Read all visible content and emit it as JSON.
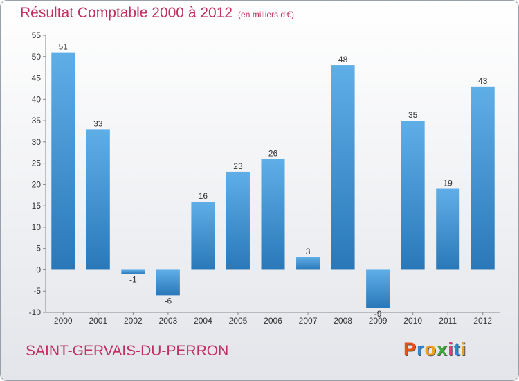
{
  "title": "Résultat Comptable 2000 à 2012",
  "subtitle": "(en milliers d'€)",
  "commune": "SAINT-GERVAIS-DU-PERRON",
  "logo": {
    "letters": [
      "P",
      "r",
      "o",
      "x",
      "i",
      "t",
      "i"
    ],
    "colors": [
      "#e8501c",
      "#2b8ad8",
      "#f0a020",
      "#3aaa35",
      "#e83a7a",
      "#2b8ad8",
      "#f0a020"
    ]
  },
  "colors": {
    "bar_top": "#5faee8",
    "bar_bottom": "#2a78b8",
    "title": "#c03060"
  },
  "chart_data": {
    "type": "bar",
    "title": "Résultat Comptable 2000 à 2012",
    "subtitle": "(en milliers d'€)",
    "categories": [
      "2000",
      "2001",
      "2002",
      "2003",
      "2004",
      "2005",
      "2006",
      "2007",
      "2008",
      "2009",
      "2010",
      "2011",
      "2012"
    ],
    "values": [
      51,
      33,
      -1,
      -6,
      16,
      23,
      26,
      3,
      48,
      -9,
      35,
      19,
      43
    ],
    "value_labels": [
      "51",
      "33",
      "-1",
      "-6",
      "16",
      "23",
      "26",
      "3",
      "48",
      "-9",
      "35",
      "19",
      "43"
    ],
    "yticks": [
      -10,
      -5,
      0,
      5,
      10,
      15,
      20,
      25,
      30,
      35,
      40,
      45,
      50,
      55
    ],
    "ytick_labels": [
      "-10",
      "-5",
      "0",
      "5",
      "10",
      "15",
      "20",
      "25",
      "30",
      "35",
      "40",
      "45",
      "50",
      "55"
    ],
    "ylim": [
      -10,
      55
    ],
    "grid": false,
    "legend": "none"
  }
}
